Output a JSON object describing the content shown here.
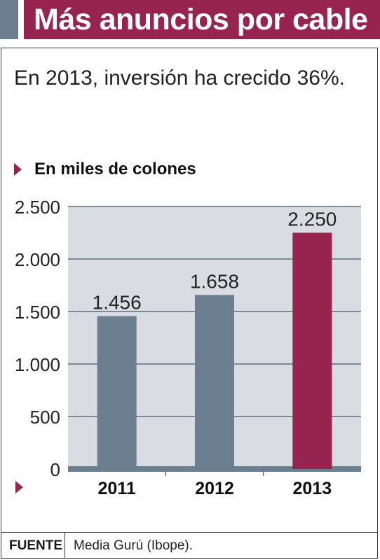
{
  "header": {
    "title": "Más anuncios por cable"
  },
  "subtitle": "En 2013, inversión ha crecido 36%.",
  "unit_label": "En miles de colones",
  "source": {
    "label": "FUENTE",
    "text": "Media Gurú (Ibope)."
  },
  "colors": {
    "accent": "#97234f",
    "bar": "#6b7f90",
    "highlight": "#97234f",
    "plot_bg": "#d9dce1"
  },
  "chart_data": {
    "type": "bar",
    "categories": [
      "2011",
      "2012",
      "2013"
    ],
    "values": [
      1456,
      1658,
      2250
    ],
    "value_labels": [
      "1.456",
      "1.658",
      "2.250"
    ],
    "highlight_index": 2,
    "ylabel": "En miles de colones",
    "ylim": [
      0,
      2500
    ],
    "yticks": [
      0,
      500,
      1000,
      1500,
      2000,
      2500
    ],
    "ytick_labels": [
      "0",
      "500",
      "1.000",
      "1.500",
      "2.000",
      "2.500"
    ],
    "grid": true
  }
}
